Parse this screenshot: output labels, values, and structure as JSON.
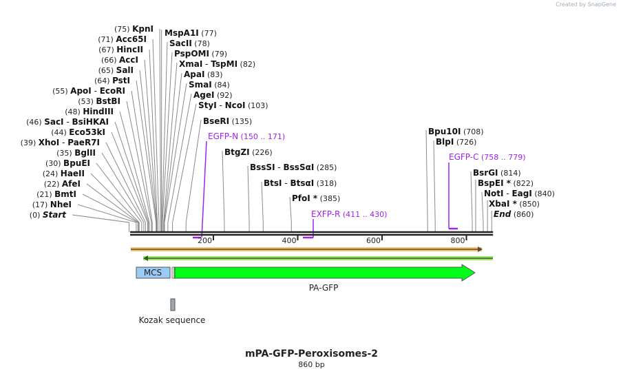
{
  "credit": {
    "prefix": "Created by",
    "brand": "SnapGene"
  },
  "title": "mPA-GFP-Peroxisomes-2",
  "length_label": "860 bp",
  "sequence_length": 860,
  "colors": {
    "primer": "#a020f0",
    "orange_track": "#f5c26b",
    "green_track": "#9be56b",
    "mcs": "#9cc9f5",
    "pa_gfp": "#00ff18",
    "kozak": "#a0a6ad"
  },
  "enzymes_left": [
    {
      "name": "KpnI",
      "pos": 75
    },
    {
      "name": "Acc65I",
      "pos": 71
    },
    {
      "name": "HincII",
      "pos": 67
    },
    {
      "name": "AccI",
      "pos": 66
    },
    {
      "name": "SalI",
      "pos": 65
    },
    {
      "name": "PstI",
      "pos": 64
    },
    {
      "name": "ApoI",
      "alt": "EcoRI",
      "pos": 55
    },
    {
      "name": "BstBI",
      "pos": 53
    },
    {
      "name": "HindIII",
      "pos": 48
    },
    {
      "name": "SacI",
      "alt": "BsiHKAI",
      "pos": 46
    },
    {
      "name": "Eco53kI",
      "pos": 44
    },
    {
      "name": "XhoI",
      "alt": "PaeR7I",
      "pos": 39
    },
    {
      "name": "BglII",
      "pos": 35
    },
    {
      "name": "BpuEI",
      "pos": 30
    },
    {
      "name": "HaeII",
      "pos": 24
    },
    {
      "name": "AfeI",
      "pos": 22
    },
    {
      "name": "BmtI",
      "pos": 21
    },
    {
      "name": "NheI",
      "pos": 17
    },
    {
      "name": "Start",
      "pos": 0,
      "italic": true
    }
  ],
  "enzymes_right": [
    {
      "name": "MspA1I",
      "pos": 77
    },
    {
      "name": "SacII",
      "pos": 78
    },
    {
      "name": "PspOMI",
      "pos": 79
    },
    {
      "name": "XmaI",
      "alt": "TspMI",
      "pos": 82
    },
    {
      "name": "ApaI",
      "pos": 83
    },
    {
      "name": "SmaI",
      "pos": 84
    },
    {
      "name": "AgeI",
      "pos": 92
    },
    {
      "name": "StyI",
      "alt": "NcoI",
      "pos": 103
    },
    {
      "name": "BseRI",
      "pos": 135
    },
    {
      "name": "BtgZI",
      "pos": 226
    },
    {
      "name": "BssSI",
      "alt": "BssSαI",
      "pos": 285
    },
    {
      "name": "BtsI",
      "alt": "BtsαI",
      "pos": 318
    },
    {
      "name": "PfoI *",
      "pos": 385
    },
    {
      "name": "Bpu10I",
      "pos": 708
    },
    {
      "name": "BlpI",
      "pos": 726
    },
    {
      "name": "BsrGI",
      "pos": 814
    },
    {
      "name": "BspEI *",
      "pos": 822
    },
    {
      "name": "NotI",
      "alt": "EagI",
      "pos": 840
    },
    {
      "name": "XbaI *",
      "pos": 850
    },
    {
      "name": "End",
      "pos": 860,
      "italic": true
    }
  ],
  "primers": [
    {
      "name": "EGFP-N",
      "range": "(150 .. 171)",
      "start": 150,
      "end": 171,
      "strand": "forward"
    },
    {
      "name": "EXFP-R",
      "range": "(411 .. 430)",
      "start": 411,
      "end": 430,
      "strand": "reverse"
    },
    {
      "name": "EGFP-C",
      "range": "(758 .. 779)",
      "start": 758,
      "end": 779,
      "strand": "forward"
    }
  ],
  "ticks": [
    200,
    400,
    600,
    800
  ],
  "features": {
    "mcs": {
      "label": "MCS",
      "start": 17,
      "end": 97
    },
    "pa_gfp": {
      "label": "PA-GFP",
      "start": 107,
      "end": 826
    },
    "kozak": {
      "label": "Kozak sequence",
      "start": 98,
      "end": 106
    }
  }
}
